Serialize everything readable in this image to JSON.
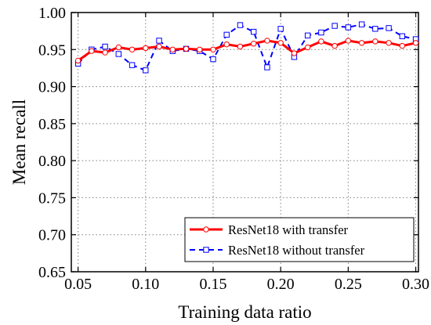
{
  "chart_data": {
    "type": "line",
    "xlabel": "Training data ratio",
    "ylabel": "Mean recall",
    "xlim": [
      0.045,
      0.302
    ],
    "ylim": [
      0.65,
      1.0
    ],
    "x_ticks": [
      "0.05",
      "0.10",
      "0.15",
      "0.20",
      "0.25",
      "0.30"
    ],
    "y_ticks": [
      "0.65",
      "0.70",
      "0.75",
      "0.80",
      "0.85",
      "0.90",
      "0.95",
      "1.00"
    ],
    "grid": true,
    "legend_position": "bottom-right",
    "x": [
      0.05,
      0.06,
      0.07,
      0.08,
      0.09,
      0.1,
      0.11,
      0.12,
      0.13,
      0.14,
      0.15,
      0.16,
      0.17,
      0.18,
      0.19,
      0.2,
      0.21,
      0.22,
      0.23,
      0.24,
      0.25,
      0.26,
      0.27,
      0.28,
      0.29,
      0.3
    ],
    "series": [
      {
        "name": "ResNet18 with transfer",
        "color": "#ff0000",
        "line_style": "solid",
        "marker": "circle",
        "values": [
          0.935,
          0.948,
          0.946,
          0.953,
          0.95,
          0.952,
          0.954,
          0.95,
          0.951,
          0.95,
          0.95,
          0.957,
          0.954,
          0.958,
          0.962,
          0.959,
          0.945,
          0.953,
          0.961,
          0.955,
          0.962,
          0.959,
          0.961,
          0.959,
          0.955,
          0.959
        ]
      },
      {
        "name": "ResNet18 without transfer",
        "color": "#0000ff",
        "line_style": "dashed",
        "marker": "square",
        "values": [
          0.931,
          0.95,
          0.954,
          0.944,
          0.929,
          0.922,
          0.962,
          0.948,
          0.951,
          0.948,
          0.937,
          0.97,
          0.983,
          0.974,
          0.926,
          0.978,
          0.94,
          0.969,
          0.973,
          0.982,
          0.98,
          0.984,
          0.978,
          0.979,
          0.968,
          0.964
        ]
      }
    ]
  }
}
